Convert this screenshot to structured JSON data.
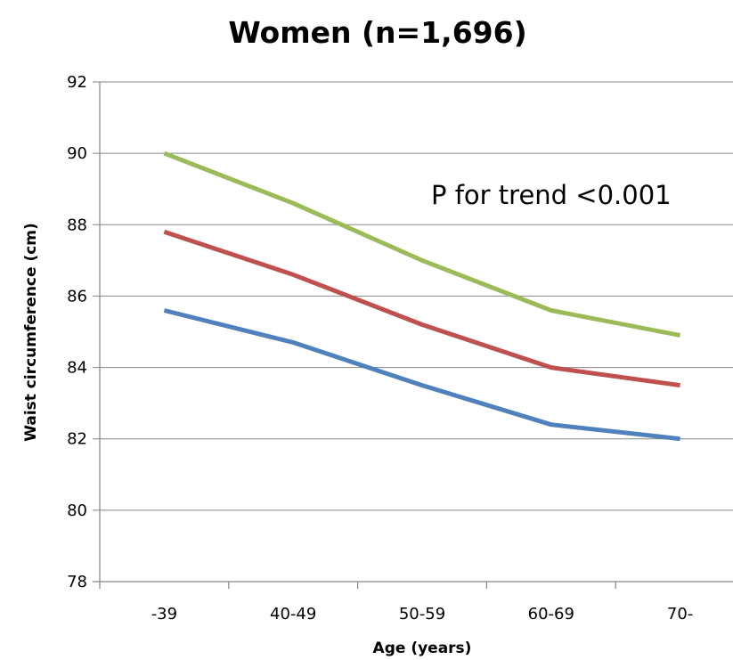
{
  "chart_data": {
    "type": "line",
    "title": "Women (n=1,696)",
    "xlabel": "Age (years)",
    "ylabel": "Waist circumference (cm)",
    "categories": [
      "-39",
      "40-49",
      "50-59",
      "60-69",
      "70-"
    ],
    "ylim": [
      78,
      92
    ],
    "yticks": [
      78,
      80,
      82,
      84,
      86,
      88,
      90,
      92
    ],
    "grid": true,
    "legend": "none",
    "annotation": "P for trend <0.001",
    "series": [
      {
        "color": "#9BBB59",
        "values": [
          90.0,
          88.6,
          87.0,
          85.6,
          84.9
        ]
      },
      {
        "color": "#C0504D",
        "values": [
          87.8,
          86.6,
          85.2,
          84.0,
          83.5
        ]
      },
      {
        "color": "#4F81BD",
        "values": [
          85.6,
          84.7,
          83.5,
          82.4,
          82.0
        ]
      }
    ]
  }
}
